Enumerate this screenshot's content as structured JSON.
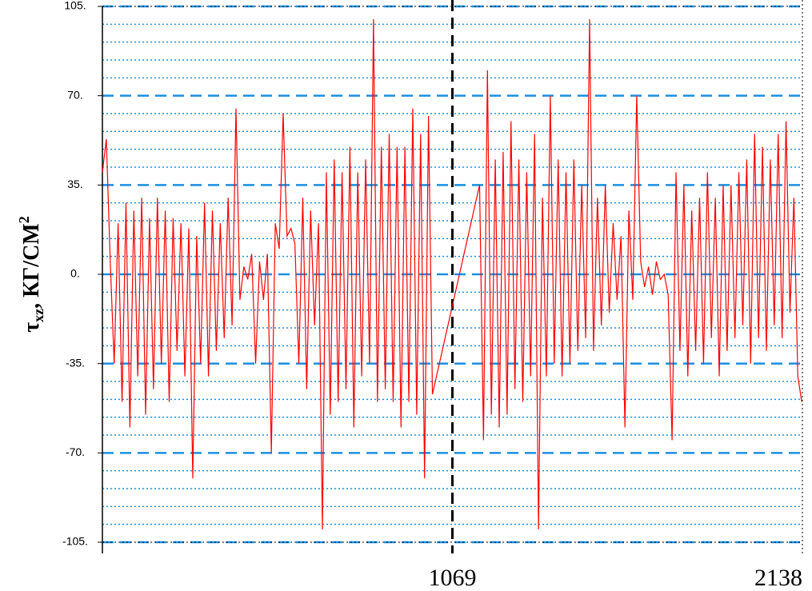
{
  "chart_data": {
    "type": "line",
    "ylabel": {
      "symbol": "τ",
      "sub": "xz",
      "unit": ", КГ/СМ",
      "sup": "2"
    },
    "xlim": [
      0,
      2138
    ],
    "xticks": [
      1069,
      2138
    ],
    "ylim": [
      -105,
      105
    ],
    "yticks": [
      {
        "value": 105,
        "label": "105."
      },
      {
        "value": 70,
        "label": "70."
      },
      {
        "value": 35,
        "label": "35."
      },
      {
        "value": 0,
        "label": "0."
      },
      {
        "value": -35,
        "label": "-35."
      },
      {
        "value": -70,
        "label": "-70."
      },
      {
        "value": -105,
        "label": "-105."
      }
    ],
    "minor_yticks": [
      98,
      91,
      84,
      77,
      63,
      56,
      49,
      42,
      28,
      21,
      14,
      7,
      -7,
      -14,
      -21,
      -28,
      -42,
      -49,
      -56,
      -63,
      -77,
      -84,
      -91,
      -98
    ],
    "grid_color": "#1a8fe0",
    "x": [
      0,
      12,
      24,
      36,
      48,
      60,
      72,
      84,
      96,
      108,
      120,
      132,
      144,
      156,
      168,
      180,
      192,
      204,
      216,
      228,
      240,
      252,
      264,
      276,
      288,
      300,
      312,
      324,
      336,
      348,
      360,
      372,
      384,
      396,
      408,
      420,
      432,
      444,
      456,
      468,
      480,
      492,
      504,
      516,
      528,
      540,
      552,
      564,
      576,
      588,
      600,
      612,
      624,
      636,
      648,
      660,
      672,
      684,
      696,
      708,
      720,
      732,
      744,
      756,
      768,
      780,
      792,
      804,
      816,
      828,
      840,
      852,
      864,
      876,
      888,
      900,
      912,
      924,
      936,
      948,
      960,
      972,
      984,
      996,
      1008,
      1152,
      1164,
      1176,
      1188,
      1200,
      1212,
      1224,
      1236,
      1248,
      1260,
      1272,
      1284,
      1296,
      1308,
      1320,
      1332,
      1344,
      1356,
      1368,
      1380,
      1392,
      1404,
      1416,
      1428,
      1440,
      1452,
      1464,
      1476,
      1488,
      1500,
      1512,
      1524,
      1536,
      1548,
      1560,
      1572,
      1584,
      1596,
      1608,
      1620,
      1632,
      1644,
      1656,
      1668,
      1680,
      1692,
      1704,
      1716,
      1728,
      1740,
      1752,
      1764,
      1776,
      1788,
      1800,
      1812,
      1824,
      1836,
      1848,
      1860,
      1872,
      1884,
      1896,
      1908,
      1920,
      1932,
      1944,
      1956,
      1968,
      1980,
      1992,
      2004,
      2016,
      2028,
      2040,
      2052,
      2064,
      2076,
      2088,
      2100,
      2112,
      2124,
      2136
    ],
    "series": [
      {
        "color": "#ff0000",
        "values": [
          40,
          53,
          5,
          -35,
          20,
          -50,
          28,
          -60,
          25,
          -40,
          30,
          -55,
          22,
          -45,
          30,
          -35,
          25,
          -50,
          22,
          -30,
          20,
          -40,
          18,
          -80,
          15,
          -35,
          28,
          -40,
          25,
          -30,
          20,
          -25,
          30,
          -20,
          65,
          -10,
          3,
          -2,
          8,
          -35,
          5,
          -10,
          8,
          -70,
          20,
          10,
          63,
          15,
          18,
          12,
          -35,
          30,
          -45,
          25,
          -20,
          20,
          -100,
          40,
          -55,
          45,
          -50,
          40,
          -45,
          50,
          -60,
          40,
          -40,
          45,
          -35,
          100,
          -50,
          50,
          -45,
          55,
          -50,
          50,
          -60,
          50,
          -50,
          65,
          -55,
          55,
          -80,
          62,
          -47,
          35,
          -65,
          80,
          -55,
          45,
          -60,
          48,
          -55,
          60,
          -45,
          45,
          -50,
          40,
          -40,
          55,
          -100,
          30,
          -40,
          70,
          -35,
          45,
          -40,
          40,
          -35,
          45,
          -30,
          35,
          -25,
          100,
          -30,
          30,
          -20,
          35,
          -15,
          20,
          -10,
          15,
          -60,
          25,
          -10,
          70,
          5,
          -5,
          3,
          -8,
          5,
          -2,
          0,
          -8,
          -65,
          40,
          -30,
          35,
          -40,
          25,
          -30,
          30,
          -35,
          40,
          -25,
          30,
          -40,
          35,
          -30,
          35,
          -25,
          40,
          -20,
          45,
          -35,
          55,
          -25,
          50,
          -30,
          45,
          -20,
          55,
          -25,
          60,
          -15,
          30,
          -40,
          -50
        ]
      }
    ]
  }
}
